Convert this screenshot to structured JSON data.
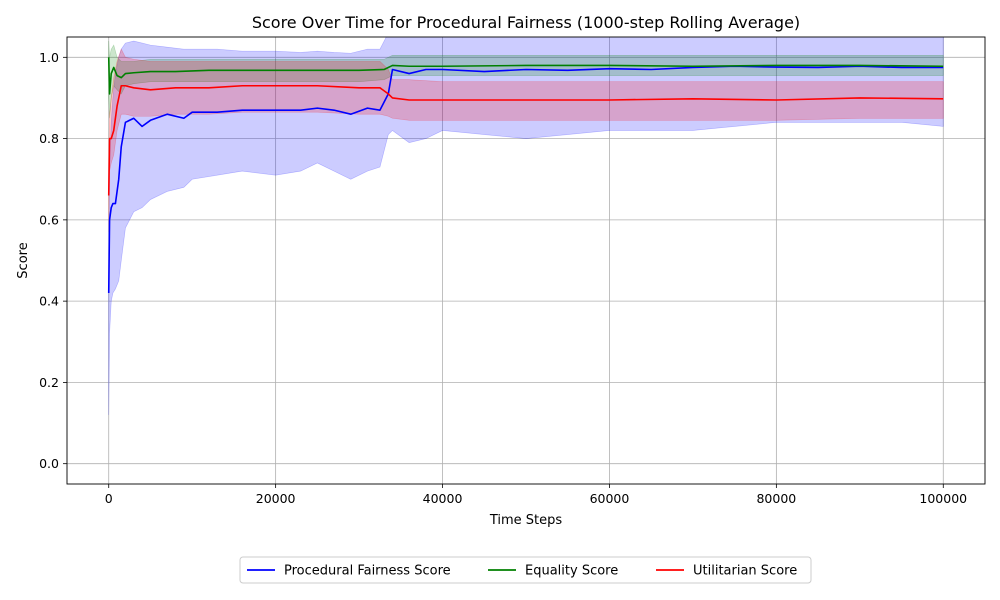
{
  "chart_data": {
    "type": "line",
    "title": "Score Over Time for Procedural Fairness (1000-step Rolling Average)",
    "xlabel": "Time Steps",
    "ylabel": "Score",
    "xlim": [
      -5000,
      105000
    ],
    "ylim": [
      -0.05,
      1.05
    ],
    "xticks": [
      0,
      20000,
      40000,
      60000,
      80000,
      100000
    ],
    "xtick_labels": [
      "0",
      "20000",
      "40000",
      "60000",
      "80000",
      "100000"
    ],
    "yticks": [
      0.0,
      0.2,
      0.4,
      0.6,
      0.8,
      1.0
    ],
    "ytick_labels": [
      "0.0",
      "0.2",
      "0.4",
      "0.6",
      "0.8",
      "1.0"
    ],
    "grid": true,
    "legend_placement": "bottom-center",
    "series": [
      {
        "name": "Procedural Fairness Score",
        "color": "#0000ff",
        "x": [
          0,
          100,
          300,
          500,
          800,
          1200,
          1500,
          2000,
          3000,
          4000,
          5000,
          7000,
          9000,
          10000,
          13000,
          16000,
          20000,
          23000,
          25000,
          27000,
          29000,
          31000,
          32500,
          33500,
          34000,
          36000,
          38000,
          40000,
          45000,
          50000,
          55000,
          60000,
          65000,
          70000,
          75000,
          80000,
          85000,
          90000,
          95000,
          100000
        ],
        "values": [
          0.42,
          0.6,
          0.63,
          0.64,
          0.64,
          0.7,
          0.78,
          0.84,
          0.85,
          0.83,
          0.845,
          0.86,
          0.85,
          0.865,
          0.865,
          0.87,
          0.87,
          0.87,
          0.875,
          0.87,
          0.86,
          0.875,
          0.87,
          0.91,
          0.97,
          0.96,
          0.97,
          0.97,
          0.965,
          0.97,
          0.968,
          0.972,
          0.97,
          0.975,
          0.978,
          0.976,
          0.975,
          0.978,
          0.975,
          0.975
        ],
        "band_upper": [
          0.45,
          0.72,
          0.84,
          0.9,
          0.96,
          1.0,
          1.02,
          1.035,
          1.04,
          1.035,
          1.03,
          1.025,
          1.02,
          1.02,
          1.02,
          1.015,
          1.015,
          1.012,
          1.015,
          1.012,
          1.01,
          1.02,
          1.02,
          1.06,
          1.08,
          1.08,
          1.08,
          1.08,
          1.08,
          1.08,
          1.08,
          1.08,
          1.08,
          1.08,
          1.08,
          1.08,
          1.08,
          1.08,
          1.08,
          1.08
        ],
        "band_lower": [
          0.12,
          0.32,
          0.4,
          0.42,
          0.43,
          0.45,
          0.5,
          0.58,
          0.62,
          0.63,
          0.65,
          0.67,
          0.68,
          0.7,
          0.71,
          0.72,
          0.71,
          0.72,
          0.74,
          0.72,
          0.7,
          0.72,
          0.73,
          0.81,
          0.82,
          0.79,
          0.8,
          0.82,
          0.81,
          0.8,
          0.81,
          0.82,
          0.82,
          0.82,
          0.83,
          0.84,
          0.84,
          0.84,
          0.84,
          0.83
        ],
        "band_color": "#0000ff"
      },
      {
        "name": "Equality Score",
        "color": "#008000",
        "x": [
          0,
          100,
          300,
          600,
          1000,
          1500,
          2000,
          3000,
          5000,
          8000,
          12000,
          20000,
          30000,
          33000,
          34000,
          36000,
          40000,
          50000,
          60000,
          70000,
          80000,
          90000,
          100000
        ],
        "values": [
          1.0,
          0.91,
          0.96,
          0.975,
          0.955,
          0.95,
          0.96,
          0.962,
          0.965,
          0.965,
          0.968,
          0.968,
          0.968,
          0.97,
          0.98,
          0.978,
          0.978,
          0.98,
          0.98,
          0.978,
          0.98,
          0.98,
          0.978
        ],
        "band_upper": [
          1.04,
          1.0,
          1.02,
          1.03,
          1.0,
          0.99,
          0.99,
          0.99,
          0.995,
          0.995,
          0.995,
          0.995,
          0.995,
          0.995,
          1.005,
          1.005,
          1.005,
          1.005,
          1.005,
          1.005,
          1.005,
          1.005,
          1.005
        ],
        "band_lower": [
          0.9,
          0.85,
          0.9,
          0.93,
          0.92,
          0.91,
          0.93,
          0.935,
          0.94,
          0.94,
          0.94,
          0.94,
          0.94,
          0.945,
          0.955,
          0.955,
          0.955,
          0.955,
          0.955,
          0.955,
          0.955,
          0.955,
          0.955
        ],
        "band_color": "#008000"
      },
      {
        "name": "Utilitarian Score",
        "color": "#ff0000",
        "x": [
          0,
          100,
          300,
          600,
          1000,
          1500,
          2000,
          3000,
          5000,
          8000,
          12000,
          16000,
          20000,
          25000,
          30000,
          32500,
          33500,
          34000,
          36000,
          40000,
          50000,
          60000,
          70000,
          80000,
          90000,
          100000
        ],
        "values": [
          0.66,
          0.8,
          0.8,
          0.82,
          0.88,
          0.93,
          0.93,
          0.925,
          0.92,
          0.925,
          0.925,
          0.93,
          0.93,
          0.93,
          0.925,
          0.925,
          0.91,
          0.9,
          0.895,
          0.895,
          0.895,
          0.895,
          0.898,
          0.895,
          0.9,
          0.898
        ],
        "band_upper": [
          0.75,
          0.86,
          0.9,
          0.95,
          0.99,
          1.02,
          1.0,
          0.995,
          0.99,
          0.99,
          0.99,
          0.99,
          0.99,
          0.99,
          0.99,
          0.99,
          0.97,
          0.945,
          0.945,
          0.94,
          0.94,
          0.94,
          0.94,
          0.94,
          0.94,
          0.94
        ],
        "band_lower": [
          0.57,
          0.72,
          0.74,
          0.76,
          0.82,
          0.86,
          0.86,
          0.855,
          0.855,
          0.86,
          0.86,
          0.865,
          0.865,
          0.865,
          0.86,
          0.86,
          0.855,
          0.85,
          0.845,
          0.845,
          0.845,
          0.845,
          0.845,
          0.845,
          0.85,
          0.85
        ],
        "band_color": "#ff0000"
      }
    ]
  }
}
